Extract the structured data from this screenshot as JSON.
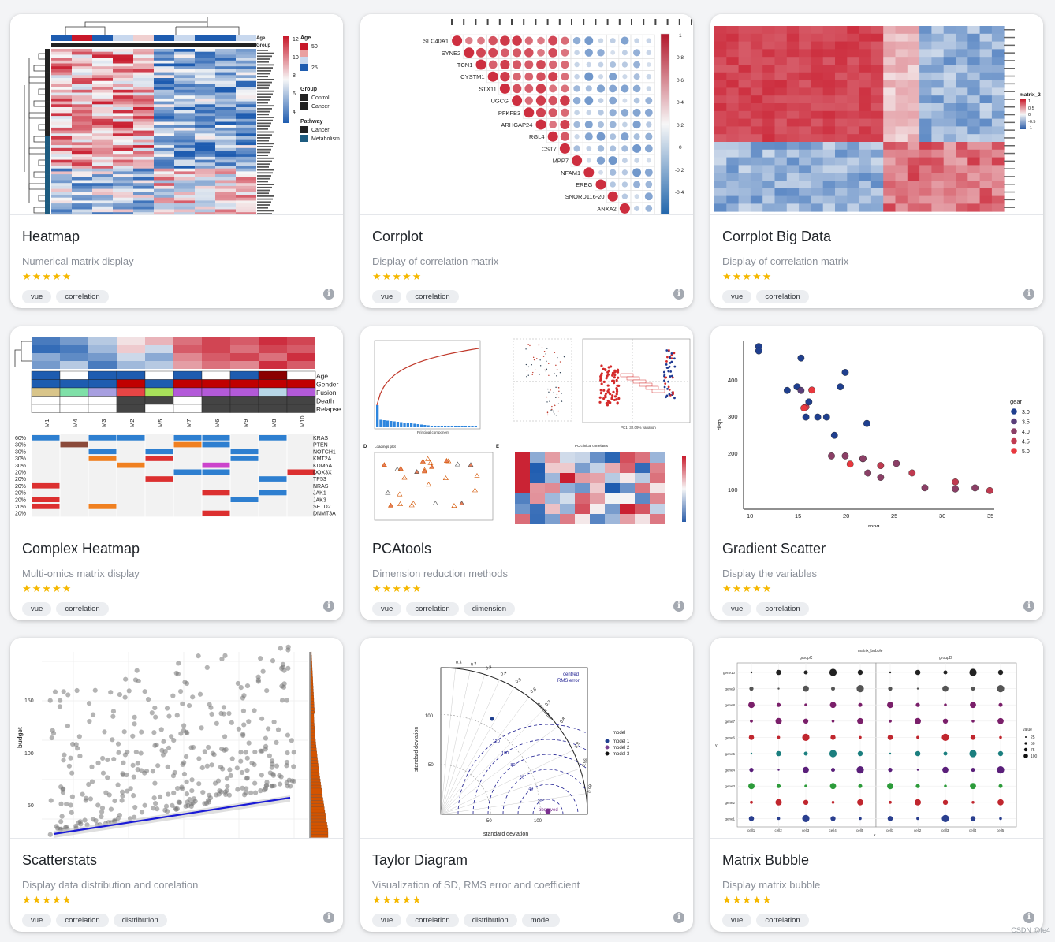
{
  "cards": [
    {
      "title": "Heatmap",
      "description": "Numerical matrix display",
      "stars": "★★★★★",
      "tags": [
        "vue",
        "correlation"
      ],
      "info_icon": "i",
      "preview": {
        "legend_age": "Age",
        "legend_group": "Group",
        "age_values": [
          "50",
          "25"
        ],
        "group_items": [
          "Control",
          "Cancer"
        ],
        "pathway_title": "Pathway",
        "pathway_items": [
          "Cancer",
          "Metabolism"
        ],
        "colorbar_ticks": [
          "12",
          "10",
          "8",
          "6",
          "4"
        ]
      }
    },
    {
      "title": "Corrplot",
      "description": "Display of correlation matrix",
      "stars": "★★★★★",
      "tags": [
        "vue",
        "correlation"
      ],
      "info_icon": "i",
      "preview": {
        "row_labels": [
          "SLC40A1",
          "SYNE2",
          "TCN1",
          "CYSTM1",
          "STX11",
          "UGCG",
          "PFKFB3",
          "ARHGAP24",
          "RGL4",
          "CST7",
          "MPP7",
          "NFAM1",
          "EREG",
          "SNORD116-20",
          "ANXA2"
        ],
        "colorbar_ticks": [
          "1",
          "0.8",
          "0.6",
          "0.4",
          "0.2",
          "0",
          "-0.2",
          "-0.4"
        ]
      }
    },
    {
      "title": "Corrplot Big Data",
      "description": "Display of correlation matrix",
      "stars": "★★★★★",
      "tags": [
        "vue",
        "correlation"
      ],
      "info_icon": "i",
      "preview": {
        "legend_title": "matrix_2",
        "legend_ticks": [
          "1",
          "0.5",
          "0",
          "-0.5",
          "-1"
        ]
      }
    },
    {
      "title": "Complex Heatmap",
      "description": "Multi-omics matrix display",
      "stars": "★★★★★",
      "tags": [
        "vue",
        "correlation"
      ],
      "info_icon": "i",
      "preview": {
        "annotations": [
          "Age",
          "Gender",
          "Fusion",
          "Death",
          "Relapse"
        ],
        "columns": [
          "M1",
          "M4",
          "M3",
          "M2",
          "M5",
          "M7",
          "M6",
          "M9",
          "M8",
          "M10"
        ],
        "genes": [
          "KRAS",
          "PTEN",
          "NOTCH1",
          "KMT2A",
          "KDM6A",
          "DOX3X",
          "TP53",
          "NRAS",
          "JAK1",
          "JAK3",
          "SETD2",
          "DNMT3A"
        ],
        "percents": [
          "60%",
          "30%",
          "30%",
          "30%",
          "30%",
          "20%",
          "20%",
          "20%",
          "20%",
          "20%",
          "20%",
          "20%"
        ]
      }
    },
    {
      "title": "PCAtools",
      "description": "Dimension reduction methods",
      "stars": "★★★★★",
      "tags": [
        "vue",
        "correlation",
        "dimension"
      ],
      "info_icon": "i",
      "preview": {
        "panel_d": "D",
        "panel_e": "E",
        "loadings_title": "Loadings plot",
        "correlates_title": "PC clinical correlates",
        "pc1_label": "PC1, 32.09% variation",
        "scree_xlabel": "Principal component"
      }
    },
    {
      "title": "Gradient Scatter",
      "description": "Display the variables",
      "stars": "★★★★★",
      "tags": [
        "vue",
        "correlation"
      ],
      "info_icon": "i",
      "preview": {
        "ylabel": "disp",
        "xlabel": "mpg",
        "legend_title": "gear",
        "legend_items": [
          "3.0",
          "3.5",
          "4.0",
          "4.5",
          "5.0"
        ],
        "legend_colors": [
          "#1f3f8f",
          "#5a3f7a",
          "#8b3f66",
          "#c03a50",
          "#e8383e"
        ],
        "x_ticks": [
          "10",
          "15",
          "20",
          "25",
          "30",
          "35"
        ],
        "y_ticks": [
          "400",
          "300",
          "200",
          "100"
        ]
      }
    },
    {
      "title": "Scatterstats",
      "description": "Display data distribution and corelation",
      "stars": "★★★★★",
      "tags": [
        "vue",
        "correlation",
        "distribution"
      ],
      "info_icon": "i",
      "preview": {
        "ylabel": "budget",
        "y_ticks": [
          "150",
          "100",
          "50"
        ]
      }
    },
    {
      "title": "Taylor Diagram",
      "description": "Visualization of SD, RMS error and coefficient",
      "stars": "★★★★★",
      "tags": [
        "vue",
        "correlation",
        "distribution",
        "model"
      ],
      "info_icon": "i",
      "preview": {
        "ylabel": "standard deviation",
        "xlabel": "standard deviation",
        "arc_label": "correlation",
        "rms_label_1": "centred",
        "rms_label_2": "RMS error",
        "observed_label": "observed",
        "legend_title": "model",
        "legend_items": [
          "model 1",
          "model 2",
          "model 3"
        ],
        "legend_colors": [
          "#1f3f8f",
          "#7a3f8f",
          "#111111"
        ],
        "y_ticks": [
          "100",
          "50"
        ],
        "x_ticks": [
          "50",
          "100"
        ],
        "rms_ticks": [
          "120",
          "100",
          "80",
          "60",
          "40",
          "20"
        ],
        "corr_ticks": [
          "0.1",
          "0.2",
          "0.3",
          "0.4",
          "0.5",
          "0.6",
          "0.7",
          "0.8",
          "0.9",
          "0.95",
          "0.99"
        ]
      }
    },
    {
      "title": "Matrix Bubble",
      "description": "Display matrix bubble",
      "stars": "★★★★★",
      "tags": [
        "vue",
        "correlation"
      ],
      "info_icon": "i",
      "preview": {
        "plot_title": "matrix_bubble",
        "group_left": "groupC",
        "group_right": "groupD",
        "genes": [
          "gene10",
          "gene9",
          "gene8",
          "gene7",
          "gene6",
          "gene5",
          "gene4",
          "gene3",
          "gene2",
          "gene1"
        ],
        "cells": [
          "cell1",
          "cell2",
          "cell3",
          "cell4",
          "cell5"
        ],
        "legend_title": "value",
        "legend_items": [
          "25",
          "50",
          "75",
          "100"
        ],
        "xlabel": "x",
        "ylabel": "y"
      }
    }
  ],
  "watermark": "CSDN @fe4"
}
